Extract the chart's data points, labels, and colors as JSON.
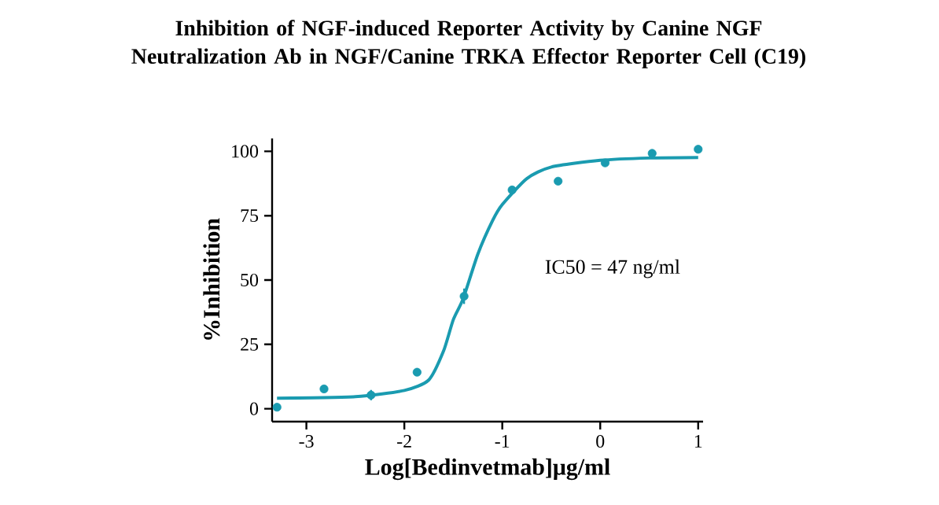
{
  "chart_data": {
    "type": "scatter",
    "title": "Inhibition of NGF-induced Reporter Activity  by Canine NGF Neutralization Ab  in NGF/Canine TRKA Effector Reporter Cell (C19)",
    "xlabel": "Log[Bedinvetmab]μg/ml",
    "ylabel": "%Inhibition",
    "annotations": [
      "IC50 = 47 ng/ml"
    ],
    "xlim": [
      -3.35,
      1.05
    ],
    "ylim": [
      -5,
      105
    ],
    "xticks": [
      -3,
      -2,
      -1,
      0,
      1
    ],
    "yticks": [
      0,
      25,
      50,
      75,
      100
    ],
    "grid": false,
    "series": [
      {
        "marker": "circle",
        "color": "#1a9bb0",
        "x": [
          -3.3,
          -2.82,
          -2.34,
          -1.87,
          -1.39,
          -0.9,
          -0.43,
          0.05,
          0.53,
          1.0
        ],
        "values": [
          0.6,
          7.7,
          5.3,
          14.2,
          43.7,
          85,
          88.4,
          95.5,
          99.2,
          100.8
        ],
        "errors": [
          null,
          null,
          2,
          null,
          3,
          null,
          null,
          null,
          null,
          null
        ]
      },
      {
        "type": "line",
        "marker": "none",
        "color": "#1a9bb0",
        "x": [
          -3.3,
          -2.5,
          -2.0,
          -1.75,
          -1.6,
          -1.5,
          -1.4,
          -1.25,
          -1.1,
          -1.0,
          -0.75,
          -0.5,
          0,
          0.5,
          1.0
        ],
        "values": [
          4.1,
          4.7,
          7.1,
          11.2,
          22.4,
          34.6,
          42.7,
          60,
          73,
          79.3,
          89.4,
          93.9,
          96.5,
          97.4,
          97.6
        ]
      }
    ]
  }
}
